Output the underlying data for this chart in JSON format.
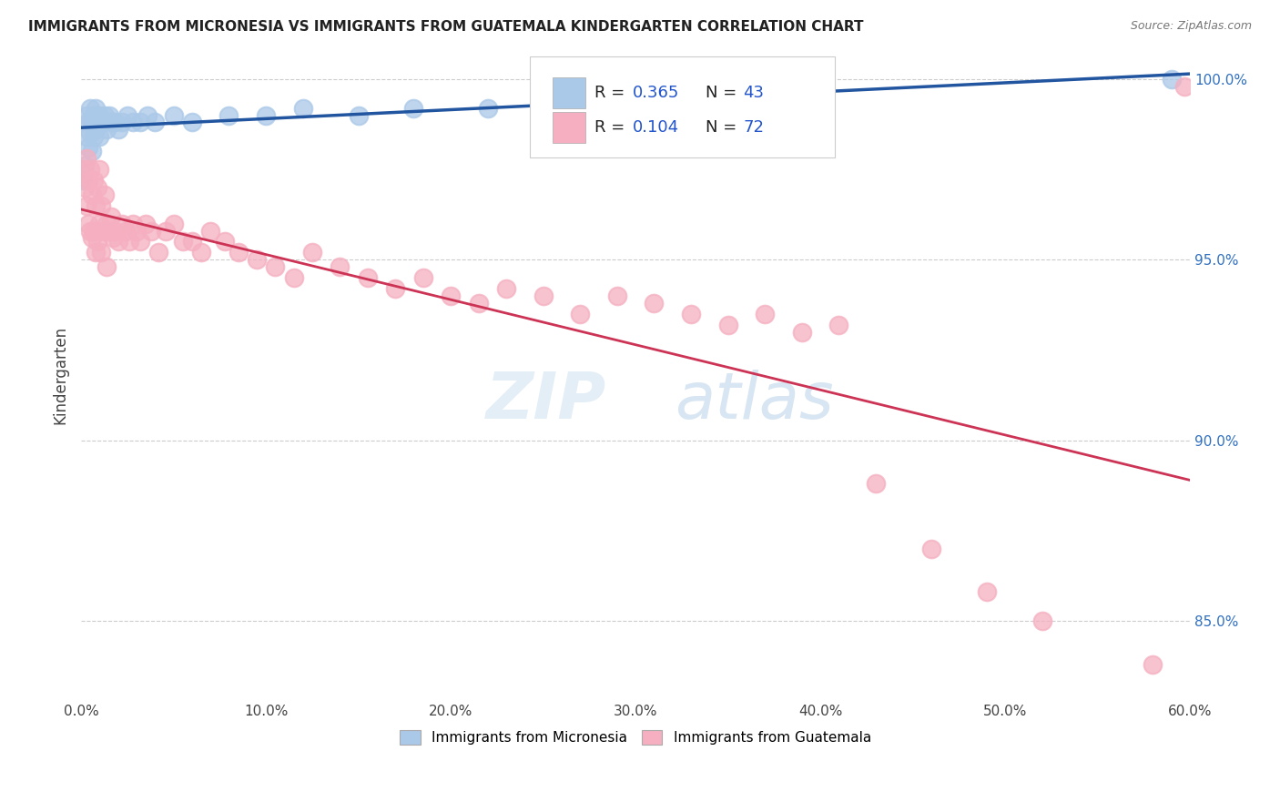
{
  "title": "IMMIGRANTS FROM MICRONESIA VS IMMIGRANTS FROM GUATEMALA KINDERGARTEN CORRELATION CHART",
  "source_text": "Source: ZipAtlas.com",
  "ylabel": "Kindergarten",
  "xlim": [
    0.0,
    0.6
  ],
  "ylim": [
    0.828,
    1.008
  ],
  "xtick_values": [
    0.0,
    0.1,
    0.2,
    0.3,
    0.4,
    0.5,
    0.6
  ],
  "ytick_values": [
    0.85,
    0.9,
    0.95,
    1.0
  ],
  "micronesia_R": 0.365,
  "micronesia_N": 43,
  "guatemala_R": 0.104,
  "guatemala_N": 72,
  "micronesia_color": "#aac8e8",
  "guatemala_color": "#f5afc0",
  "micronesia_line_color": "#2255a0",
  "guatemala_line_color": "#cc3355",
  "legend_R_color": "#2255cc",
  "background_color": "#ffffff",
  "mic_x": [
    0.001,
    0.002,
    0.003,
    0.003,
    0.004,
    0.004,
    0.005,
    0.005,
    0.006,
    0.006,
    0.007,
    0.007,
    0.008,
    0.008,
    0.009,
    0.01,
    0.01,
    0.011,
    0.012,
    0.013,
    0.014,
    0.015,
    0.016,
    0.018,
    0.02,
    0.022,
    0.025,
    0.028,
    0.032,
    0.036,
    0.04,
    0.05,
    0.06,
    0.08,
    0.1,
    0.12,
    0.15,
    0.18,
    0.22,
    0.28,
    0.32,
    0.35,
    0.59
  ],
  "mic_y": [
    0.972,
    0.976,
    0.984,
    0.99,
    0.981,
    0.988,
    0.985,
    0.992,
    0.98,
    0.988,
    0.984,
    0.99,
    0.986,
    0.992,
    0.99,
    0.984,
    0.99,
    0.988,
    0.988,
    0.99,
    0.986,
    0.99,
    0.988,
    0.988,
    0.986,
    0.988,
    0.99,
    0.988,
    0.988,
    0.99,
    0.988,
    0.99,
    0.988,
    0.99,
    0.99,
    0.992,
    0.99,
    0.992,
    0.992,
    0.993,
    0.994,
    0.995,
    1.0
  ],
  "gua_x": [
    0.001,
    0.002,
    0.003,
    0.003,
    0.004,
    0.004,
    0.005,
    0.005,
    0.006,
    0.006,
    0.007,
    0.007,
    0.008,
    0.008,
    0.009,
    0.009,
    0.01,
    0.01,
    0.011,
    0.011,
    0.012,
    0.013,
    0.014,
    0.014,
    0.015,
    0.016,
    0.017,
    0.018,
    0.02,
    0.022,
    0.024,
    0.026,
    0.028,
    0.03,
    0.032,
    0.035,
    0.038,
    0.042,
    0.046,
    0.05,
    0.055,
    0.06,
    0.065,
    0.07,
    0.078,
    0.085,
    0.095,
    0.105,
    0.115,
    0.125,
    0.14,
    0.155,
    0.17,
    0.185,
    0.2,
    0.215,
    0.23,
    0.25,
    0.27,
    0.29,
    0.31,
    0.33,
    0.35,
    0.37,
    0.39,
    0.41,
    0.43,
    0.46,
    0.49,
    0.52,
    0.58,
    0.597
  ],
  "gua_y": [
    0.975,
    0.97,
    0.978,
    0.965,
    0.972,
    0.96,
    0.975,
    0.958,
    0.968,
    0.956,
    0.972,
    0.958,
    0.965,
    0.952,
    0.97,
    0.955,
    0.975,
    0.96,
    0.965,
    0.952,
    0.958,
    0.968,
    0.96,
    0.948,
    0.958,
    0.962,
    0.956,
    0.958,
    0.955,
    0.96,
    0.958,
    0.955,
    0.96,
    0.958,
    0.955,
    0.96,
    0.958,
    0.952,
    0.958,
    0.96,
    0.955,
    0.955,
    0.952,
    0.958,
    0.955,
    0.952,
    0.95,
    0.948,
    0.945,
    0.952,
    0.948,
    0.945,
    0.942,
    0.945,
    0.94,
    0.938,
    0.942,
    0.94,
    0.935,
    0.94,
    0.938,
    0.935,
    0.932,
    0.935,
    0.93,
    0.932,
    0.888,
    0.87,
    0.858,
    0.85,
    0.838,
    0.998
  ]
}
